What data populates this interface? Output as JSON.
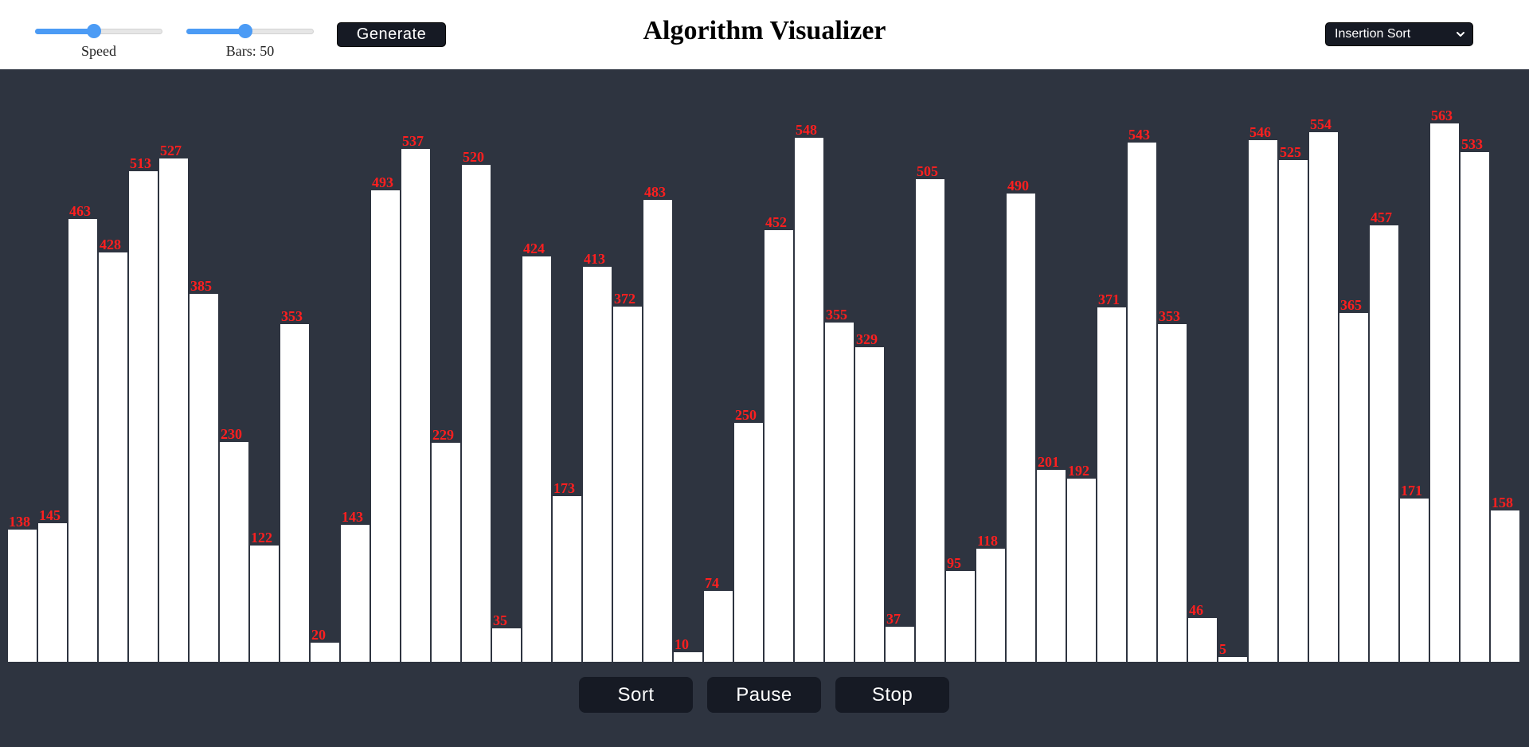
{
  "title": "Algorithm Visualizer",
  "controls": {
    "speed": {
      "label": "Speed",
      "value_fraction": 0.46
    },
    "bars": {
      "label": "Bars: 50",
      "value_fraction": 0.46
    },
    "generate_label": "Generate",
    "algorithm_selected": "Insertion Sort"
  },
  "actions": {
    "sort_label": "Sort",
    "pause_label": "Pause",
    "stop_label": "Stop"
  },
  "colors": {
    "background": "#2e3440",
    "bar": "#ffffff",
    "value_label": "#ff1f1f",
    "button": "#161a24",
    "slider_accent": "#4b9bf5"
  },
  "icons": {
    "select_arrow": "chevron-down-icon"
  },
  "chart_data": {
    "type": "bar",
    "ylim": [
      0,
      600
    ],
    "values": [
      138,
      145,
      463,
      428,
      513,
      527,
      385,
      230,
      122,
      353,
      20,
      143,
      493,
      537,
      229,
      520,
      35,
      424,
      173,
      413,
      372,
      483,
      10,
      74,
      250,
      452,
      548,
      355,
      329,
      37,
      505,
      95,
      118,
      490,
      201,
      192,
      371,
      543,
      353,
      46,
      5,
      546,
      525,
      554,
      365,
      457,
      171,
      563,
      533,
      158
    ]
  }
}
